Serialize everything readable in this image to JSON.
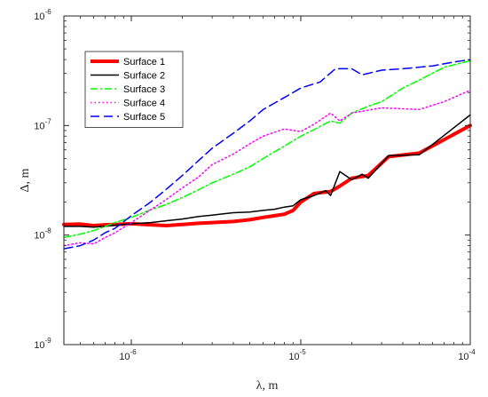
{
  "chart_data": {
    "type": "line",
    "xlabel": "λ, m",
    "ylabel": "Δ, m",
    "xscale": "log",
    "yscale": "log",
    "xlim": [
      4e-07,
      0.0001
    ],
    "ylim": [
      1e-09,
      1e-06
    ],
    "x_ticks": [
      1e-06,
      1e-05,
      0.0001
    ],
    "y_ticks": [
      1e-09,
      1e-08,
      1e-07,
      1e-06
    ],
    "grid": false,
    "legend_position": "top-left",
    "series": [
      {
        "name": "Surface 1",
        "color": "#ff0000",
        "dash": "solid",
        "width": 4,
        "points": [
          [
            4e-07,
            1.25e-08
          ],
          [
            5e-07,
            1.26e-08
          ],
          [
            6e-07,
            1.22e-08
          ],
          [
            7e-07,
            1.24e-08
          ],
          [
            8e-07,
            1.25e-08
          ],
          [
            1e-06,
            1.27e-08
          ],
          [
            1.3e-06,
            1.24e-08
          ],
          [
            1.6e-06,
            1.22e-08
          ],
          [
            2e-06,
            1.25e-08
          ],
          [
            2.5e-06,
            1.28e-08
          ],
          [
            3e-06,
            1.3e-08
          ],
          [
            4e-06,
            1.33e-08
          ],
          [
            5e-06,
            1.38e-08
          ],
          [
            6e-06,
            1.45e-08
          ],
          [
            7e-06,
            1.5e-08
          ],
          [
            8e-06,
            1.55e-08
          ],
          [
            9e-06,
            1.68e-08
          ],
          [
            1e-05,
            2e-08
          ],
          [
            1.2e-05,
            2.4e-08
          ],
          [
            1.5e-05,
            2.5e-08
          ],
          [
            1.7e-05,
            2.8e-08
          ],
          [
            2e-05,
            3.3e-08
          ],
          [
            2.5e-05,
            3.5e-08
          ],
          [
            3.3e-05,
            5.2e-08
          ],
          [
            5e-05,
            5.6e-08
          ],
          [
            0.0001,
            1e-07
          ]
        ]
      },
      {
        "name": "Surface 2",
        "color": "#000000",
        "dash": "solid",
        "width": 1.5,
        "points": [
          [
            4e-07,
            1.2e-08
          ],
          [
            5e-07,
            1.2e-08
          ],
          [
            6e-07,
            1.18e-08
          ],
          [
            7e-07,
            1.2e-08
          ],
          [
            8e-07,
            1.23e-08
          ],
          [
            1e-06,
            1.27e-08
          ],
          [
            1.3e-06,
            1.3e-08
          ],
          [
            1.6e-06,
            1.35e-08
          ],
          [
            2e-06,
            1.4e-08
          ],
          [
            2.5e-06,
            1.48e-08
          ],
          [
            3e-06,
            1.52e-08
          ],
          [
            4e-06,
            1.6e-08
          ],
          [
            5e-06,
            1.62e-08
          ],
          [
            6e-06,
            1.68e-08
          ],
          [
            7e-06,
            1.72e-08
          ],
          [
            8e-06,
            1.8e-08
          ],
          [
            9e-06,
            1.85e-08
          ],
          [
            1e-05,
            2.1e-08
          ],
          [
            1.2e-05,
            2.3e-08
          ],
          [
            1.4e-05,
            2.55e-08
          ],
          [
            1.5e-05,
            2.3e-08
          ],
          [
            1.7e-05,
            3.8e-08
          ],
          [
            2e-05,
            3.2e-08
          ],
          [
            2.3e-05,
            3.6e-08
          ],
          [
            2.5e-05,
            3.3e-08
          ],
          [
            3.3e-05,
            5.3e-08
          ],
          [
            5e-05,
            5.4e-08
          ],
          [
            0.0001,
            1.25e-07
          ]
        ]
      },
      {
        "name": "Surface 3",
        "color": "#00ff00",
        "dash": "dashdot",
        "width": 1.5,
        "points": [
          [
            4e-07,
            9.5e-09
          ],
          [
            5e-07,
            1.02e-08
          ],
          [
            6e-07,
            1.1e-08
          ],
          [
            7e-07,
            1.2e-08
          ],
          [
            8e-07,
            1.3e-08
          ],
          [
            1e-06,
            1.45e-08
          ],
          [
            1.3e-06,
            1.7e-08
          ],
          [
            1.6e-06,
            1.9e-08
          ],
          [
            2e-06,
            2.2e-08
          ],
          [
            2.5e-06,
            2.6e-08
          ],
          [
            3e-06,
            3e-08
          ],
          [
            4e-06,
            3.6e-08
          ],
          [
            5e-06,
            4.2e-08
          ],
          [
            6e-06,
            5e-08
          ],
          [
            8e-06,
            6.5e-08
          ],
          [
            1e-05,
            8e-08
          ],
          [
            1.2e-05,
            9.2e-08
          ],
          [
            1.5e-05,
            1.1e-07
          ],
          [
            1.7e-05,
            1.05e-07
          ],
          [
            2e-05,
            1.3e-07
          ],
          [
            2.5e-05,
            1.5e-07
          ],
          [
            3e-05,
            1.65e-07
          ],
          [
            4e-05,
            2.2e-07
          ],
          [
            5e-05,
            2.6e-07
          ],
          [
            7e-05,
            3.4e-07
          ],
          [
            0.0001,
            3.9e-07
          ]
        ]
      },
      {
        "name": "Surface 4",
        "color": "#ff00ff",
        "dash": "dotted",
        "width": 1.5,
        "points": [
          [
            4e-07,
            8e-09
          ],
          [
            5e-07,
            8.5e-09
          ],
          [
            6e-07,
            8.3e-09
          ],
          [
            7e-07,
            9.5e-09
          ],
          [
            8e-07,
            1.05e-08
          ],
          [
            1e-06,
            1.3e-08
          ],
          [
            1.3e-06,
            1.7e-08
          ],
          [
            1.6e-06,
            2.1e-08
          ],
          [
            2e-06,
            2.7e-08
          ],
          [
            2.5e-06,
            3.4e-08
          ],
          [
            3e-06,
            4.4e-08
          ],
          [
            4e-06,
            5.5e-08
          ],
          [
            5e-06,
            6.8e-08
          ],
          [
            6e-06,
            8e-08
          ],
          [
            8e-06,
            9.3e-08
          ],
          [
            1e-05,
            8.8e-08
          ],
          [
            1.2e-05,
            1.03e-07
          ],
          [
            1.5e-05,
            1.3e-07
          ],
          [
            1.7e-05,
            1.1e-07
          ],
          [
            2e-05,
            1.3e-07
          ],
          [
            3e-05,
            1.45e-07
          ],
          [
            5e-05,
            1.4e-07
          ],
          [
            7e-05,
            1.65e-07
          ],
          [
            0.0001,
            2.1e-07
          ]
        ]
      },
      {
        "name": "Surface 5",
        "color": "#0000ff",
        "dash": "dashed",
        "width": 1.5,
        "points": [
          [
            4e-07,
            7.5e-09
          ],
          [
            5e-07,
            8e-09
          ],
          [
            6e-07,
            9e-09
          ],
          [
            7e-07,
            1.05e-08
          ],
          [
            8e-07,
            1.15e-08
          ],
          [
            1e-06,
            1.5e-08
          ],
          [
            1.3e-06,
            2e-08
          ],
          [
            1.6e-06,
            2.6e-08
          ],
          [
            2e-06,
            3.5e-08
          ],
          [
            2.5e-06,
            4.8e-08
          ],
          [
            3e-06,
            6.2e-08
          ],
          [
            4e-06,
            8.5e-08
          ],
          [
            5e-06,
            1.1e-07
          ],
          [
            6e-06,
            1.4e-07
          ],
          [
            8e-06,
            1.8e-07
          ],
          [
            1e-05,
            2.2e-07
          ],
          [
            1.3e-05,
            2.5e-07
          ],
          [
            1.6e-05,
            3.3e-07
          ],
          [
            2e-05,
            3.3e-07
          ],
          [
            2.3e-05,
            2.9e-07
          ],
          [
            3e-05,
            3.2e-07
          ],
          [
            4e-05,
            3.3e-07
          ],
          [
            6e-05,
            3.5e-07
          ],
          [
            8e-05,
            3.8e-07
          ],
          [
            0.0001,
            4e-07
          ]
        ]
      }
    ]
  }
}
